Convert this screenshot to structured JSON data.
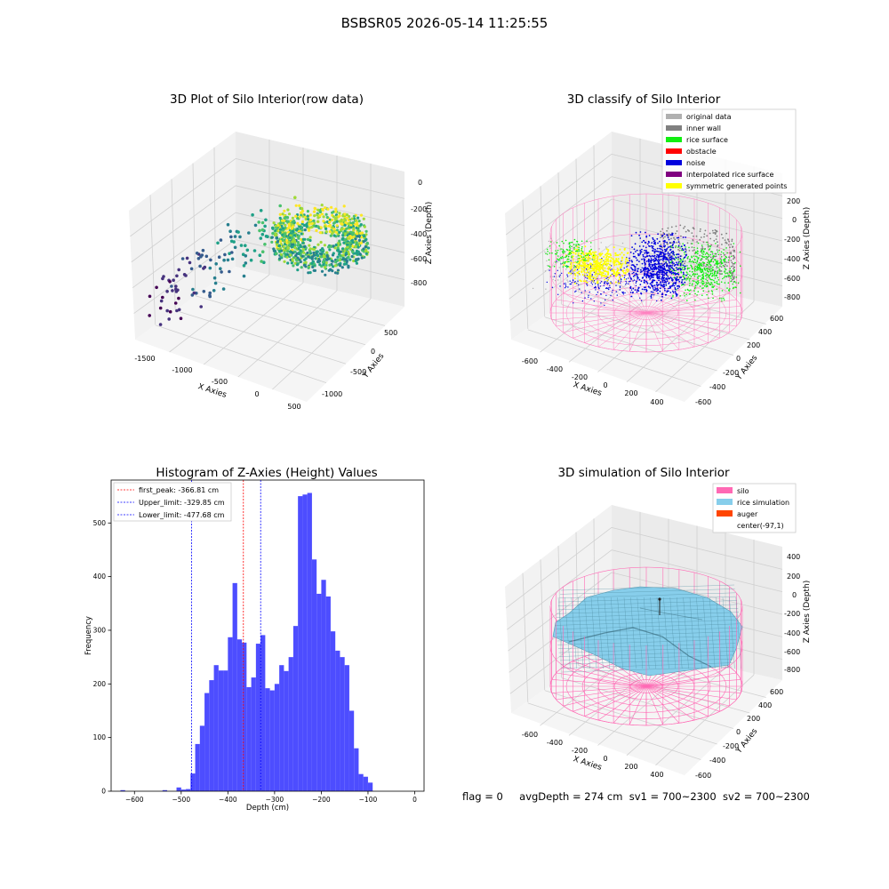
{
  "figure": {
    "suptitle": "BSBSR05 2026-05-14 11:25:55"
  },
  "status_line": {
    "flag": "flag = 0",
    "avg_depth": "avgDepth = 274 cm",
    "sv1": "sv1 = 700~2300",
    "sv2": "sv2 = 700~2300"
  },
  "chart_data": [
    {
      "type": "scatter",
      "projection": "3d",
      "title": "3D Plot of Silo Interior(row data)",
      "xlabel": "X Axies",
      "ylabel": "Y Axies",
      "zlabel": "Z Axies (Depth)",
      "x_ticks": [
        "-1500",
        "-1000",
        "-500",
        "0",
        "500"
      ],
      "y_ticks": [
        "-1000",
        "-500",
        "0",
        "500"
      ],
      "z_ticks": [
        "0",
        "-200",
        "-400",
        "-600",
        "-800"
      ],
      "xlim": [
        -1600,
        600
      ],
      "ylim": [
        -1100,
        700
      ],
      "zlim": [
        -900,
        0
      ],
      "colormap": "viridis",
      "grid": true
    },
    {
      "type": "scatter",
      "projection": "3d",
      "title": "3D classify of Silo Interior",
      "xlabel": "X Axies",
      "ylabel": "Y Axies",
      "zlabel": "Z Axies (Depth)",
      "x_ticks": [
        "-600",
        "-400",
        "-200",
        "0",
        "200",
        "400"
      ],
      "y_ticks": [
        "-600",
        "-400",
        "-200",
        "0",
        "200",
        "400",
        "600"
      ],
      "z_ticks": [
        "200",
        "0",
        "-200",
        "-400",
        "-600",
        "-800"
      ],
      "legend_position": "top-right",
      "legend": [
        {
          "label": "original data",
          "color": "#b0b0b0"
        },
        {
          "label": "inner wall",
          "color": "#808080"
        },
        {
          "label": "rice surface",
          "color": "#11ee11"
        },
        {
          "label": "obstacle",
          "color": "#ff0000"
        },
        {
          "label": "noise",
          "color": "#0000dd"
        },
        {
          "label": "interpolated rice surface",
          "color": "#800080"
        },
        {
          "label": "symmetric generated points",
          "color": "#ffff00"
        }
      ],
      "silo_color": "#ff80c0",
      "grid": true
    },
    {
      "type": "bar",
      "title": "Histogram of Z-Axies (Height) Values",
      "xlabel": "Depth (cm)",
      "ylabel": "Frequency",
      "xlim": [
        -650,
        20
      ],
      "ylim": [
        0,
        580
      ],
      "x_ticks": [
        -600,
        -500,
        -400,
        -300,
        -200,
        -100,
        0
      ],
      "y_ticks": [
        0,
        100,
        200,
        300,
        400,
        500
      ],
      "bar_color": "#4d4dff",
      "bin_width": 10,
      "bins": [
        [
          -625,
          2
        ],
        [
          -615,
          0
        ],
        [
          -605,
          0
        ],
        [
          -595,
          0
        ],
        [
          -585,
          0
        ],
        [
          -575,
          0
        ],
        [
          -565,
          0
        ],
        [
          -555,
          0
        ],
        [
          -545,
          0
        ],
        [
          -535,
          2
        ],
        [
          -525,
          0
        ],
        [
          -515,
          0
        ],
        [
          -505,
          7
        ],
        [
          -495,
          3
        ],
        [
          -485,
          4
        ],
        [
          -475,
          33
        ],
        [
          -465,
          88
        ],
        [
          -455,
          122
        ],
        [
          -445,
          183
        ],
        [
          -435,
          207
        ],
        [
          -425,
          235
        ],
        [
          -415,
          225
        ],
        [
          -405,
          225
        ],
        [
          -395,
          287
        ],
        [
          -385,
          388
        ],
        [
          -375,
          283
        ],
        [
          -365,
          277
        ],
        [
          -355,
          194
        ],
        [
          -345,
          212
        ],
        [
          -335,
          275
        ],
        [
          -325,
          291
        ],
        [
          -315,
          192
        ],
        [
          -305,
          188
        ],
        [
          -295,
          200
        ],
        [
          -285,
          235
        ],
        [
          -275,
          224
        ],
        [
          -265,
          250
        ],
        [
          -255,
          308
        ],
        [
          -245,
          550
        ],
        [
          -235,
          553
        ],
        [
          -225,
          556
        ],
        [
          -215,
          432
        ],
        [
          -205,
          368
        ],
        [
          -195,
          394
        ],
        [
          -185,
          363
        ],
        [
          -175,
          298
        ],
        [
          -165,
          262
        ],
        [
          -155,
          250
        ],
        [
          -145,
          235
        ],
        [
          -135,
          150
        ],
        [
          -125,
          80
        ],
        [
          -115,
          32
        ],
        [
          -105,
          27
        ],
        [
          -95,
          16
        ]
      ],
      "vlines": [
        {
          "label": "first_peak: -366.81 cm",
          "x": -366.81,
          "color": "#ff0000"
        },
        {
          "label": "Upper_limit: -329.85 cm",
          "x": -329.85,
          "color": "#0000ff"
        },
        {
          "label": "Lower_limit: -477.68 cm",
          "x": -477.68,
          "color": "#0000ff"
        }
      ],
      "legend_position": "top-left"
    },
    {
      "type": "surface",
      "projection": "3d",
      "title": "3D simulation of Silo Interior",
      "xlabel": "X Axies",
      "ylabel": "Y Axies",
      "zlabel": "Z Axies (Depth)",
      "x_ticks": [
        "-600",
        "-400",
        "-200",
        "0",
        "200",
        "400"
      ],
      "y_ticks": [
        "-600",
        "-400",
        "-200",
        "0",
        "200",
        "400",
        "600"
      ],
      "z_ticks": [
        "400",
        "200",
        "0",
        "-200",
        "-400",
        "-600",
        "-800"
      ],
      "legend_position": "top-right",
      "legend": [
        {
          "label": "silo",
          "color": "#ff69b4"
        },
        {
          "label": "rice simulation",
          "color": "#87ceeb"
        },
        {
          "label": "auger",
          "color": "#ff4500"
        },
        {
          "label": "center(-97,1)",
          "color": "#ffffff"
        }
      ],
      "grid": true
    }
  ]
}
